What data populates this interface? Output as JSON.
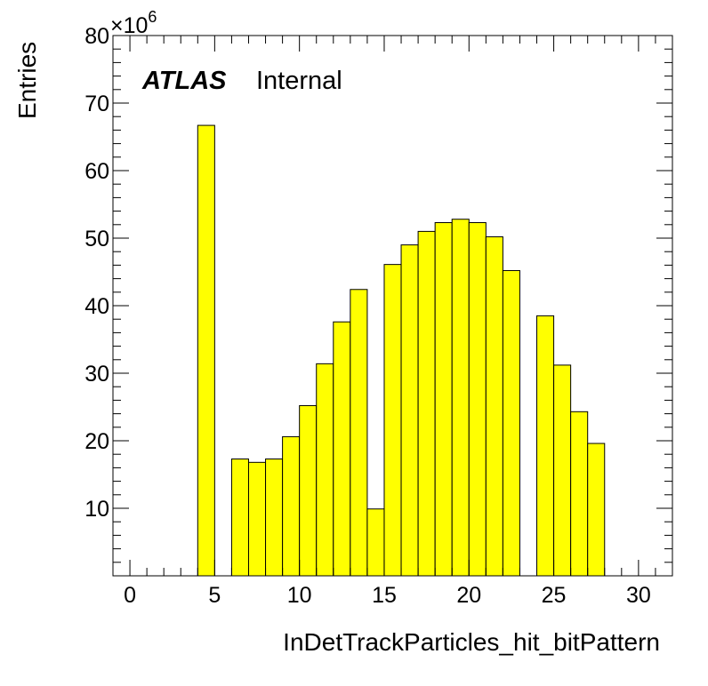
{
  "chart_data": {
    "type": "bar",
    "label_main": "ATLAS",
    "label_sub": "Internal",
    "xlabel": "InDetTrackParticles_hit_bitPattern",
    "ylabel": "Entries",
    "y_multiplier_base": "×10",
    "y_multiplier_exp": "6",
    "xlim": [
      -1,
      32
    ],
    "ylim": [
      0,
      80
    ],
    "x_ticks": [
      "0",
      "5",
      "10",
      "15",
      "20",
      "25",
      "30"
    ],
    "y_ticks": [
      "10",
      "20",
      "30",
      "40",
      "50",
      "60",
      "70",
      "80"
    ],
    "bins": [
      {
        "lo": 0,
        "hi": 1,
        "value": 0
      },
      {
        "lo": 1,
        "hi": 2,
        "value": 0
      },
      {
        "lo": 2,
        "hi": 3,
        "value": 0
      },
      {
        "lo": 3,
        "hi": 4,
        "value": 0
      },
      {
        "lo": 4,
        "hi": 5,
        "value": 66.7
      },
      {
        "lo": 5,
        "hi": 6,
        "value": 0
      },
      {
        "lo": 6,
        "hi": 7,
        "value": 17.3
      },
      {
        "lo": 7,
        "hi": 8,
        "value": 16.8
      },
      {
        "lo": 8,
        "hi": 9,
        "value": 17.3
      },
      {
        "lo": 9,
        "hi": 10,
        "value": 20.6
      },
      {
        "lo": 10,
        "hi": 11,
        "value": 25.2
      },
      {
        "lo": 11,
        "hi": 12,
        "value": 31.4
      },
      {
        "lo": 12,
        "hi": 13,
        "value": 37.6
      },
      {
        "lo": 13,
        "hi": 14,
        "value": 42.4
      },
      {
        "lo": 14,
        "hi": 15,
        "value": 9.9
      },
      {
        "lo": 15,
        "hi": 16,
        "value": 46.1
      },
      {
        "lo": 16,
        "hi": 17,
        "value": 49.0
      },
      {
        "lo": 17,
        "hi": 18,
        "value": 51.0
      },
      {
        "lo": 18,
        "hi": 19,
        "value": 52.3
      },
      {
        "lo": 19,
        "hi": 20,
        "value": 52.8
      },
      {
        "lo": 20,
        "hi": 21,
        "value": 52.3
      },
      {
        "lo": 21,
        "hi": 22,
        "value": 50.2
      },
      {
        "lo": 22,
        "hi": 23,
        "value": 45.2
      },
      {
        "lo": 23,
        "hi": 24,
        "value": 0
      },
      {
        "lo": 24,
        "hi": 25,
        "value": 38.5
      },
      {
        "lo": 25,
        "hi": 26,
        "value": 31.2
      },
      {
        "lo": 26,
        "hi": 27,
        "value": 24.3
      },
      {
        "lo": 27,
        "hi": 28,
        "value": 19.6
      },
      {
        "lo": 28,
        "hi": 29,
        "value": 0
      },
      {
        "lo": 29,
        "hi": 30,
        "value": 0
      },
      {
        "lo": 30,
        "hi": 31,
        "value": 0
      },
      {
        "lo": 31,
        "hi": 32,
        "value": 0
      }
    ],
    "colors": {
      "fill": "#ffff00",
      "line": "#000000"
    },
    "grid": false,
    "legend": "none"
  }
}
